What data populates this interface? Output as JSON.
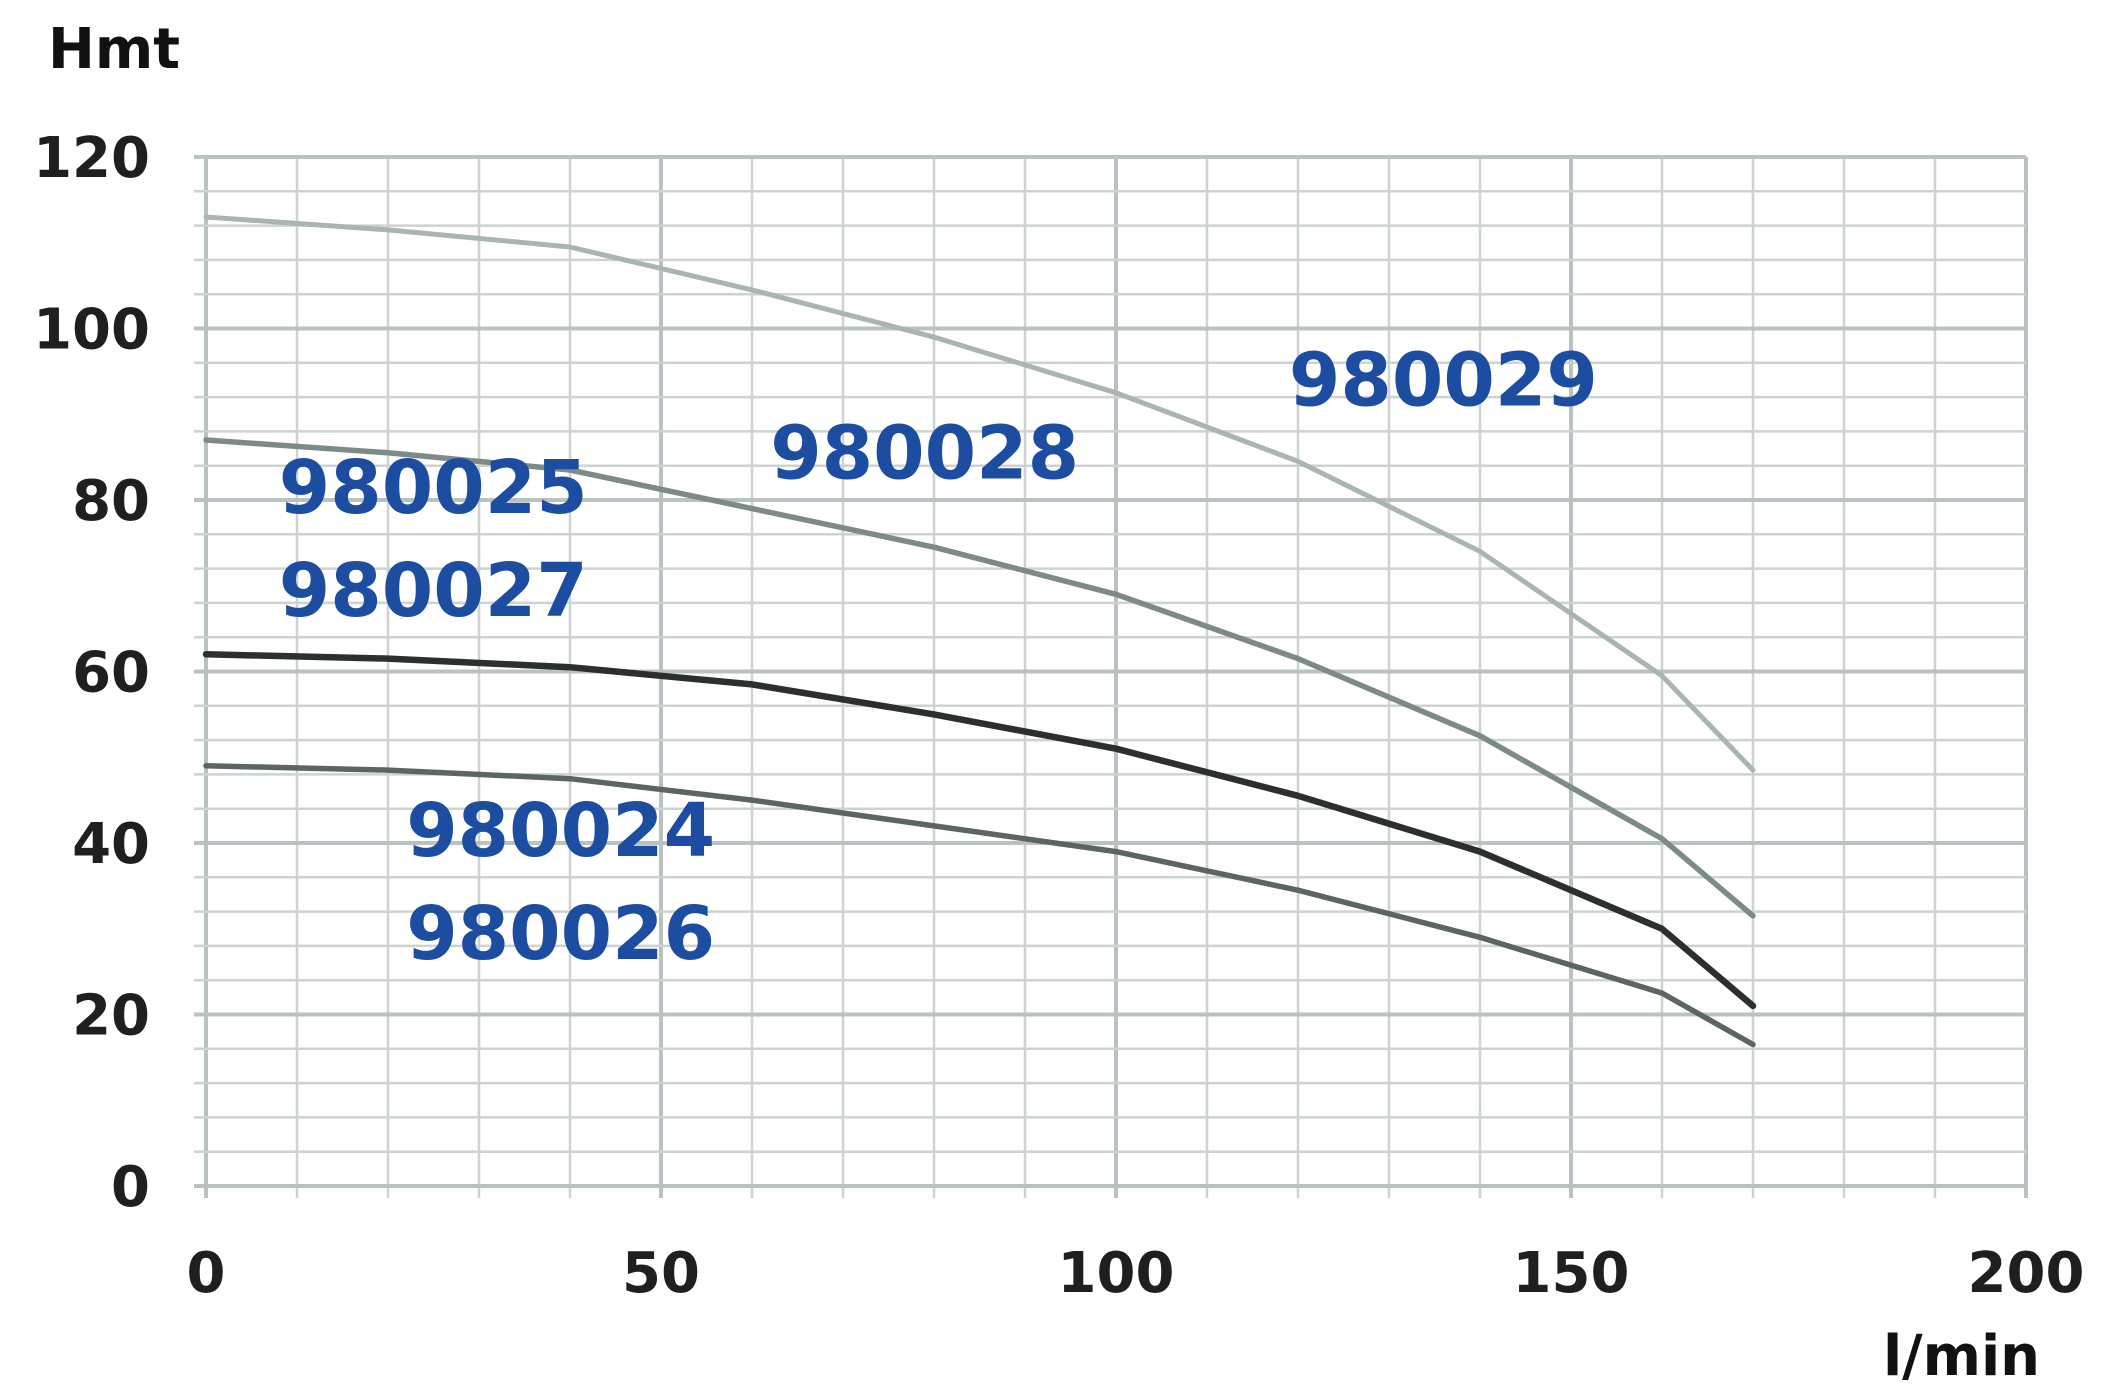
{
  "colors": {
    "label": "#1c4da1",
    "grid": "#b9c2c0"
  },
  "chart_data": {
    "type": "line",
    "ylabel": "Hmt",
    "xlabel": "l/min",
    "xlim": [
      0,
      200
    ],
    "ylim": [
      0,
      120
    ],
    "x_ticks": [
      "0",
      "50",
      "100",
      "150",
      "200"
    ],
    "y_ticks": [
      "0",
      "20",
      "40",
      "60",
      "80",
      "100",
      "120"
    ],
    "grid": true,
    "series": [
      {
        "name": "980029",
        "color": "#a9b5b1",
        "stroke_width": 5,
        "x": [
          0,
          20,
          40,
          60,
          80,
          100,
          120,
          140,
          160,
          170
        ],
        "y": [
          113,
          111.5,
          109.5,
          104.5,
          99,
          92.5,
          84.5,
          74,
          59.5,
          48.5
        ]
      },
      {
        "name": "980028",
        "color": "#7d8b88",
        "stroke_width": 5.5,
        "x": [
          0,
          20,
          40,
          60,
          80,
          100,
          120,
          140,
          160,
          170
        ],
        "y": [
          87,
          85.5,
          83.5,
          79,
          74.5,
          69,
          61.5,
          52.5,
          40.5,
          31.5
        ]
      },
      {
        "name": "980025 / 980027",
        "color": "#2c2f30",
        "stroke_width": 6.5,
        "x": [
          0,
          20,
          40,
          60,
          80,
          100,
          120,
          140,
          160,
          170
        ],
        "y": [
          62,
          61.5,
          60.5,
          58.5,
          55,
          51,
          45.5,
          39,
          30,
          21
        ]
      },
      {
        "name": "980024 / 980026",
        "color": "#5b6664",
        "stroke_width": 5.5,
        "x": [
          0,
          20,
          40,
          60,
          80,
          100,
          120,
          140,
          160,
          170
        ],
        "y": [
          49,
          48.5,
          47.5,
          45,
          42,
          39,
          34.5,
          29,
          22.5,
          16.5
        ]
      }
    ],
    "annotations": [
      {
        "text": "980029",
        "x": 119,
        "y": 91
      },
      {
        "text": "980028",
        "x": 62,
        "y": 82.5
      },
      {
        "text": "980025",
        "x": 8,
        "y": 78.5
      },
      {
        "text": "980027",
        "x": 8,
        "y": 66.5
      },
      {
        "text": "980024",
        "x": 22,
        "y": 38.5
      },
      {
        "text": "980026",
        "x": 22,
        "y": 26.5
      }
    ]
  }
}
